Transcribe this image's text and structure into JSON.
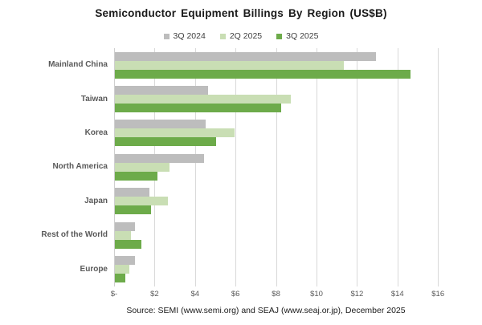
{
  "title": "Semiconductor Equipment Billings By Region (US$B)",
  "source": "Source: SEMI (www.semi.org)  and SEAJ (www.seaj.or.jp),  December 2025",
  "chart_data": {
    "type": "bar",
    "orientation": "horizontal",
    "title": "Semiconductor Equipment Billings By Region (US$B)",
    "categories": [
      "Mainland China",
      "Taiwan",
      "Korea",
      "North America",
      "Japan",
      "Rest of the World",
      "Europe"
    ],
    "series": [
      {
        "name": "3Q 2024",
        "color": "#bdbdbd",
        "values": [
          12.9,
          4.6,
          4.5,
          4.4,
          1.7,
          1.0,
          1.0
        ]
      },
      {
        "name": "2Q 2025",
        "color": "#c9deb4",
        "values": [
          11.3,
          8.7,
          5.9,
          2.7,
          2.6,
          0.8,
          0.7
        ]
      },
      {
        "name": "3Q 2025",
        "color": "#6dab4a",
        "values": [
          14.6,
          8.2,
          5.0,
          2.1,
          1.8,
          1.3,
          0.5
        ]
      }
    ],
    "xlim": [
      0,
      16
    ],
    "x_tick_values": [
      0,
      2,
      4,
      6,
      8,
      10,
      12,
      14,
      16
    ],
    "x_tick_labels": [
      "$-",
      "$2",
      "$4",
      "$6",
      "$8",
      "$10",
      "$12",
      "$14",
      "$16"
    ],
    "grid": true,
    "gridline_color": "#d9d9d9",
    "legend_position": "top"
  }
}
